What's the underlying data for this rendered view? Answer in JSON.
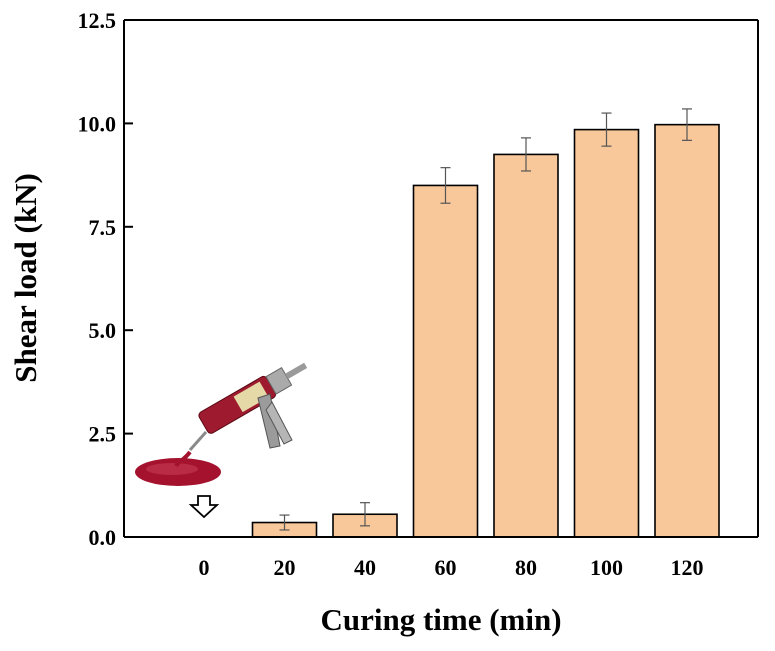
{
  "chart_data": {
    "type": "bar",
    "title": "",
    "xlabel": "Curing time (min)",
    "ylabel": "Shear load (kN)",
    "categories": [
      "0",
      "20",
      "40",
      "60",
      "80",
      "100",
      "120"
    ],
    "values": [
      0,
      0.35,
      0.55,
      8.5,
      9.25,
      9.85,
      9.97
    ],
    "errors": [
      0,
      0.18,
      0.28,
      0.43,
      0.4,
      0.4,
      0.38
    ],
    "ylim": [
      0,
      12.5
    ],
    "yticks": [
      "0.0",
      "2.5",
      "5.0",
      "7.5",
      "10.0",
      "12.5"
    ],
    "grid": false,
    "legend": "none",
    "bar_color": "#f9c89a",
    "bar_edge_color": "#000000",
    "inset_image": "adhesive-dispenser-gun-dispensing-red-liquid",
    "arrow_marker_at": "0"
  }
}
